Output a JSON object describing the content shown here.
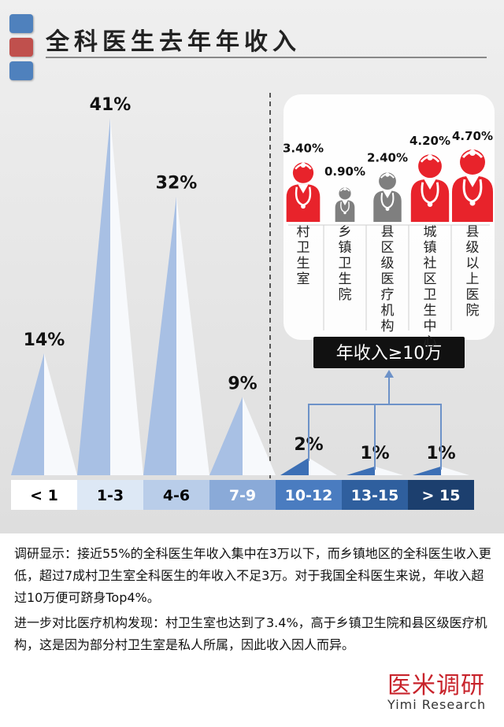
{
  "title": "全科医生去年年收入",
  "legend_colors": [
    "#4f81bd",
    "#c0504d",
    "#4f81bd"
  ],
  "chart_data": {
    "type": "bar",
    "title": "全科医生去年年收入",
    "categories": [
      "< 1",
      "1-3",
      "4-6",
      "7-9",
      "10-12",
      "13-15",
      "> 15"
    ],
    "values": [
      14,
      41,
      32,
      9,
      2,
      1,
      1
    ],
    "value_labels": [
      "14%",
      "41%",
      "32%",
      "9%",
      "2%",
      "1%",
      "1%"
    ],
    "unit": "%",
    "ylim": [
      0,
      45
    ],
    "bar_colors": [
      "#a8c0e4",
      "#a8c0e4",
      "#a8c0e4",
      "#a8c0e4",
      "#3c6fb5",
      "#3c6fb5",
      "#3c6fb5"
    ],
    "category_box_colors": [
      "#ffffff",
      "#dde8f5",
      "#b9cde9",
      "#8aaad8",
      "#4a7cc0",
      "#2f5f9e",
      "#1c3f6e"
    ],
    "category_text_colors": [
      "#000000",
      "#000000",
      "#000000",
      "#ffffff",
      "#ffffff",
      "#ffffff",
      "#ffffff"
    ],
    "callout": {
      "label": "年收入≥10万",
      "institutions": [
        {
          "name": "村卫生室",
          "value": 3.4,
          "label": "3.40%"
        },
        {
          "name": "乡镇卫生院",
          "value": 0.9,
          "label": "0.90%"
        },
        {
          "name": "县区级医疗机构",
          "value": 2.4,
          "label": "2.40%"
        },
        {
          "name": "城镇社区卫生中心",
          "value": 4.2,
          "label": "4.20%"
        },
        {
          "name": "县级以上医院",
          "value": 4.7,
          "label": "4.70%"
        }
      ],
      "icon_colors": [
        "#e8232b",
        "#7f7f7f",
        "#7f7f7f",
        "#e8232b",
        "#e8232b"
      ]
    }
  },
  "description": {
    "para1": "调研显示：接近55%的全科医生年收入集中在3万以下，而乡镇地区的全科医生收入更低，超过7成村卫生室全科医生的年收入不足3万。对于我国全科医生来说，年收入超过10万便可跻身Top4%。",
    "para2": "进一步对比医疗机构发现：村卫生室也达到了3.4%，高于乡镇卫生院和县区级医疗机构，这是因为部分村卫生室是私人所属，因此收入因人而异。"
  },
  "brand": {
    "cn": "医米调研",
    "en": "Yimi Research"
  }
}
